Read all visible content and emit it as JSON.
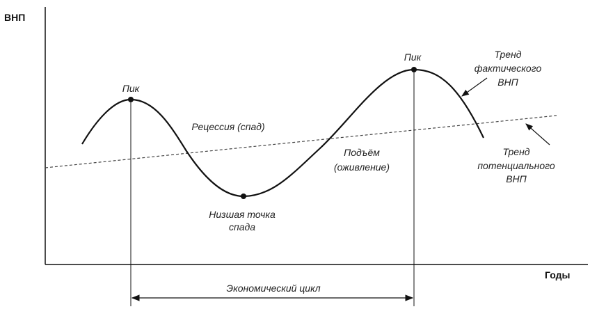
{
  "axes": {
    "y_label": "ВНП",
    "x_label": "Годы"
  },
  "labels": {
    "peak_left": "Пик",
    "peak_right": "Пик",
    "recession": "Рецессия (спад)",
    "trough_line1": "Низшая точка",
    "trough_line2": "спада",
    "recovery_line1": "Подъём",
    "recovery_line2": "(оживление)",
    "actual_trend_line1": "Тренд",
    "actual_trend_line2": "фактического",
    "actual_trend_line3": "ВНП",
    "potential_trend_line1": "Тренд",
    "potential_trend_line2": "потенциального",
    "potential_trend_line3": "ВНП",
    "cycle": "Экономический цикл"
  },
  "colors": {
    "ink": "#111111",
    "dashed_trend": "#444444"
  }
}
